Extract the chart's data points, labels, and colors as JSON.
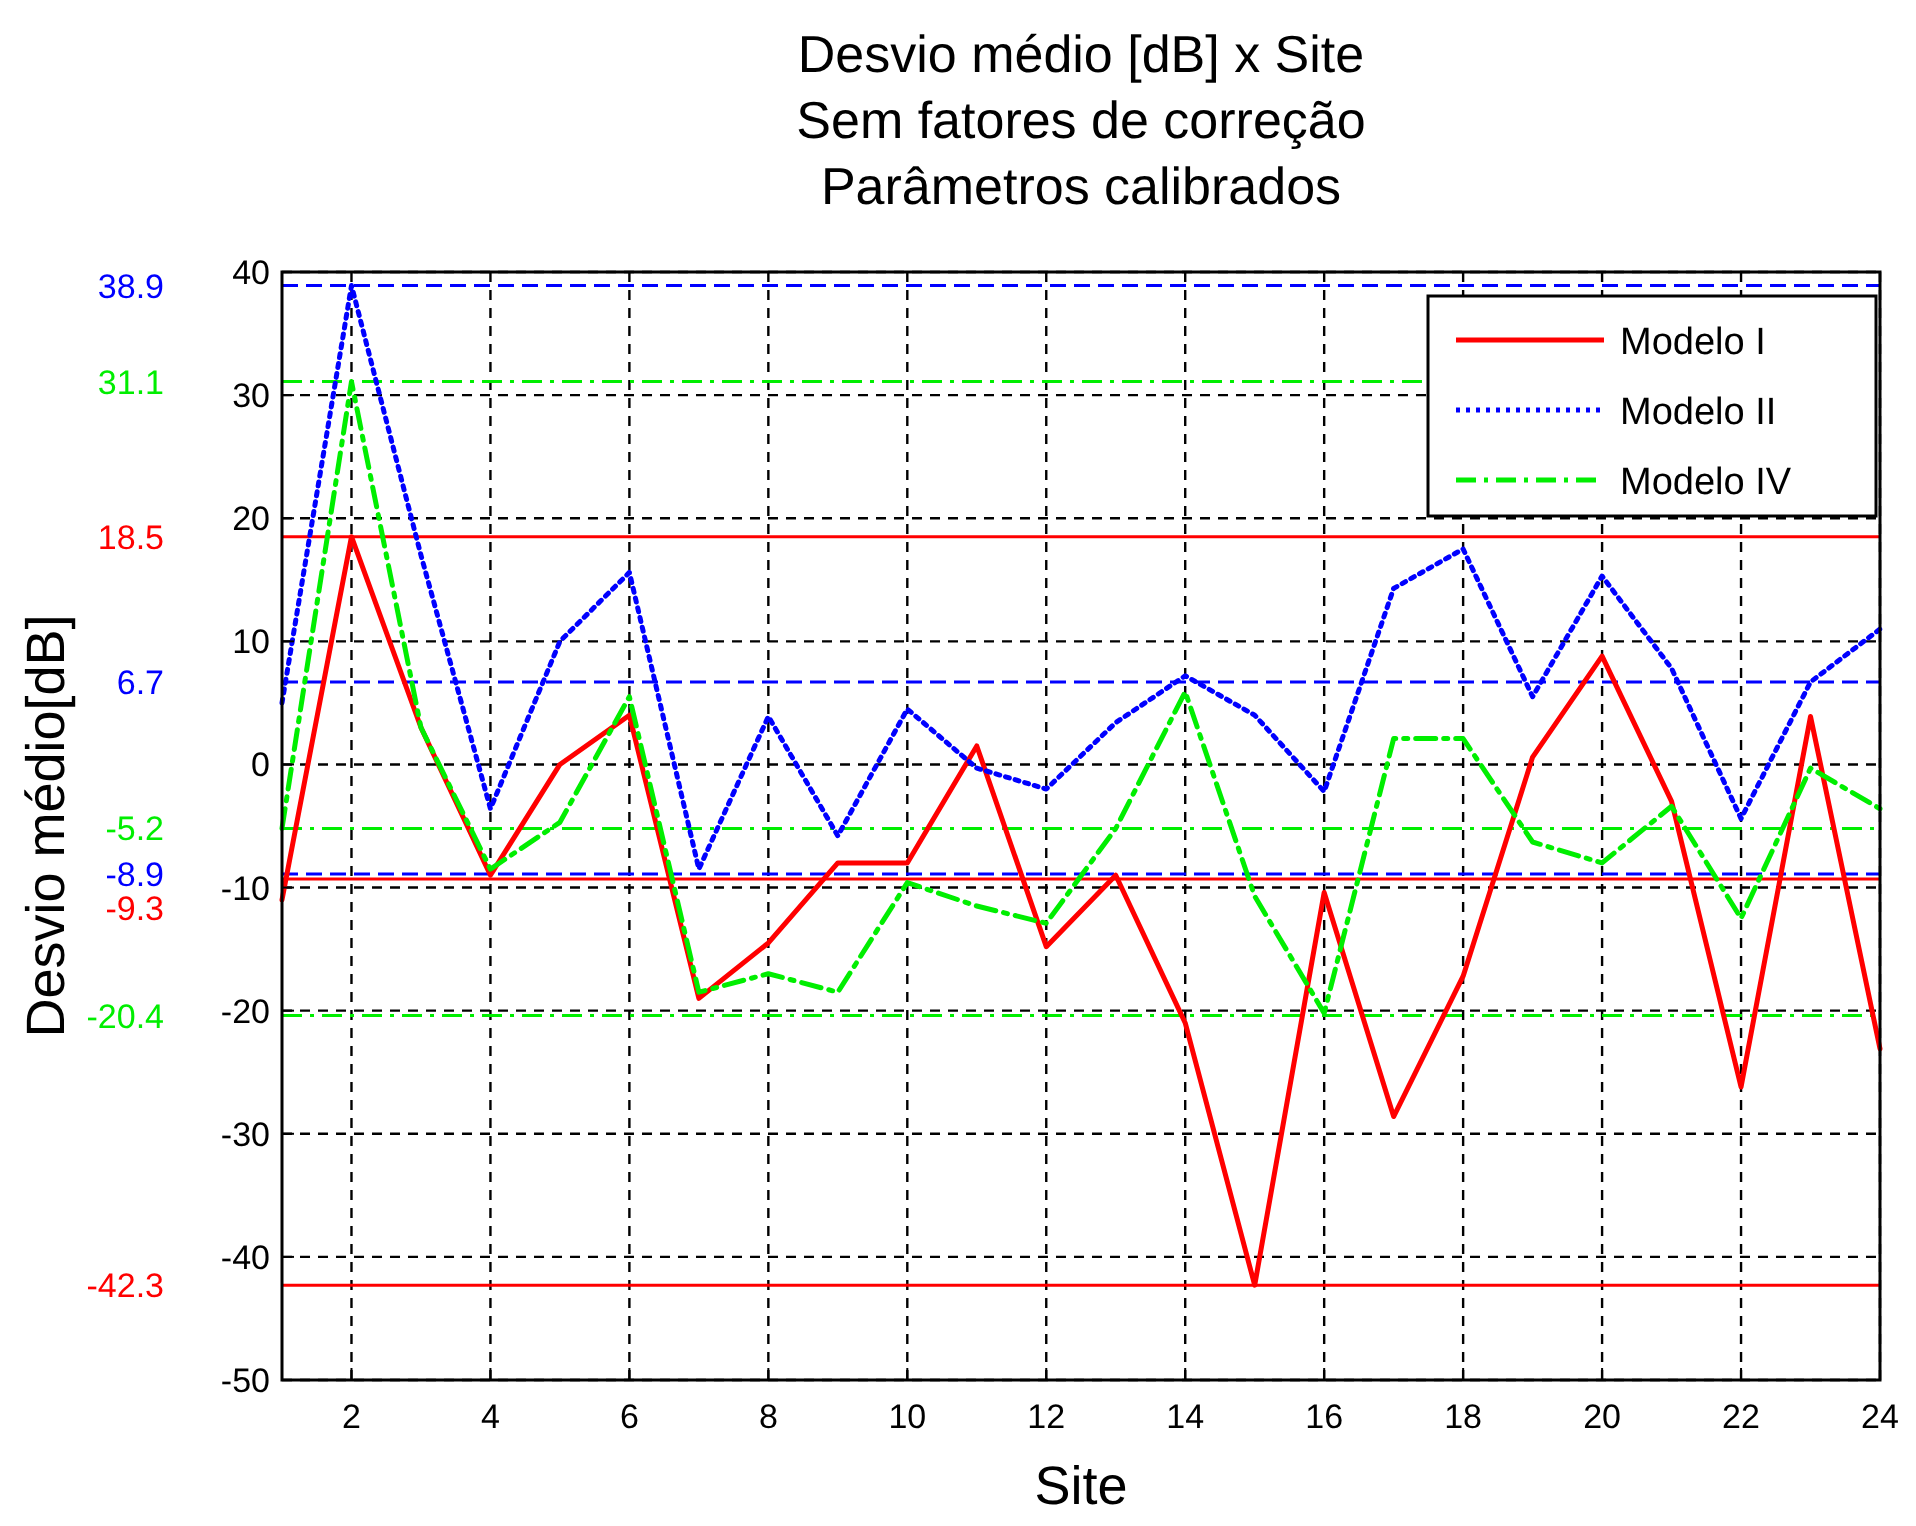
{
  "chart_data": {
    "type": "line",
    "title": "Desvio médio [dB] x Site\nSem fatores de correção\nParâmetros calibrados",
    "xlabel": "Site",
    "ylabel": "Desvio médio[dB]",
    "x": [
      1,
      2,
      3,
      4,
      5,
      6,
      7,
      8,
      9,
      10,
      11,
      12,
      13,
      14,
      15,
      16,
      17,
      18,
      19,
      20,
      21,
      22,
      23,
      24
    ],
    "series": [
      {
        "name": "Modelo I",
        "color": "#ff0000",
        "line_style": "solid",
        "values": [
          -11,
          18.5,
          3,
          -9,
          0,
          4,
          -19,
          -14.5,
          -8,
          -8,
          1.5,
          -14.8,
          -9,
          -21,
          -42.3,
          -10.4,
          -28.6,
          -17.2,
          0.6,
          8.8,
          -3,
          -26.2,
          3.9,
          -23.1
        ]
      },
      {
        "name": "Modelo II",
        "color": "#0000ff",
        "line_style": "dotted",
        "values": [
          5,
          38.9,
          17,
          -3.6,
          10,
          15.6,
          -8.5,
          3.9,
          -5.8,
          4.5,
          -0.3,
          -2,
          3.4,
          7.2,
          4,
          -2.2,
          14.3,
          17.5,
          5.5,
          15.3,
          7.8,
          -4.4,
          6.7,
          11
        ]
      },
      {
        "name": "Modelo IV",
        "color": "#00ee00",
        "line_style": "dashdot",
        "values": [
          -5.2,
          31.1,
          3,
          -8.5,
          -4.7,
          5.5,
          -18.5,
          -17,
          -18.5,
          -9.6,
          -11.5,
          -12.9,
          -5.2,
          5.9,
          -10.7,
          -20.2,
          2.1,
          2.1,
          -6.3,
          -8,
          -3.4,
          -12.5,
          -0.3,
          -3.6
        ]
      }
    ],
    "xlim": [
      1,
      24
    ],
    "xticks": [
      2,
      4,
      6,
      8,
      10,
      12,
      14,
      16,
      18,
      20,
      22,
      24
    ],
    "ylim": [
      -50,
      40
    ],
    "yticks": [
      -50,
      -40,
      -30,
      -20,
      -10,
      0,
      10,
      20,
      30,
      40
    ],
    "grid": true,
    "legend": "top right",
    "ref_lines": [
      {
        "axis": "y",
        "value": 18.5,
        "label": "18.5",
        "color": "#ff0000",
        "line_style": "solid"
      },
      {
        "axis": "y",
        "value": -9.3,
        "label": "-9.3",
        "color": "#ff0000",
        "line_style": "solid"
      },
      {
        "axis": "y",
        "value": -42.3,
        "label": "-42.3",
        "color": "#ff0000",
        "line_style": "solid"
      },
      {
        "axis": "y",
        "value": 38.9,
        "label": "38.9",
        "color": "#0000ff",
        "line_style": "dashed"
      },
      {
        "axis": "y",
        "value": 6.7,
        "label": "6.7",
        "color": "#0000ff",
        "line_style": "dashed"
      },
      {
        "axis": "y",
        "value": -8.9,
        "label": "-8.9",
        "color": "#0000ff",
        "line_style": "dashed"
      },
      {
        "axis": "y",
        "value": 31.1,
        "label": "31.1",
        "color": "#00ee00",
        "line_style": "dashdot"
      },
      {
        "axis": "y",
        "value": -5.2,
        "label": "-5.2",
        "color": "#00ee00",
        "line_style": "dashdot"
      },
      {
        "axis": "y",
        "value": -20.4,
        "label": "-20.4",
        "color": "#00ee00",
        "line_style": "dashdot"
      }
    ]
  }
}
